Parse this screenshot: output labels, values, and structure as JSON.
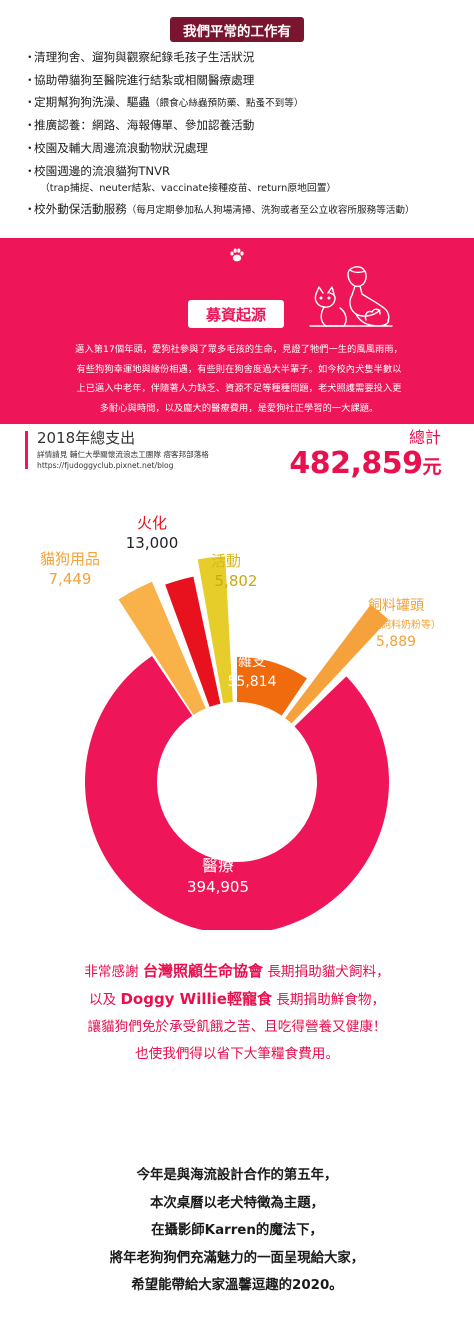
{
  "work": {
    "title": "我們平常的工作有",
    "bullet": "・",
    "items": [
      {
        "text": "清理狗舍、遛狗與觀察紀錄毛孩子生活狀況",
        "note": "",
        "sub": ""
      },
      {
        "text": "協助帶貓狗至醫院進行結紮或相關醫療處理",
        "note": "",
        "sub": ""
      },
      {
        "text": "定期幫狗狗洗澡、驅蟲",
        "note": "（餵食心絲蟲預防藥、點蚤不到等）",
        "sub": ""
      },
      {
        "text": "推廣認養：網路、海報傳單、參加認養活動",
        "note": "",
        "sub": ""
      },
      {
        "text": "校園及輔大周邊流浪動物狀況處理",
        "note": "",
        "sub": ""
      },
      {
        "text": "校園週邊的流浪貓狗TNVR",
        "note": "",
        "sub": "（trap捕捉、neuter結紮、vaccinate接種疫苗、return原地回置）"
      },
      {
        "text": "校外動保活動服務",
        "note": "（每月定期參加私人狗場清掃、洗狗或者至公立收容所服務等活動）",
        "sub": ""
      }
    ]
  },
  "fundraising": {
    "title": "募資起源",
    "lines": [
      "邁入第17個年頭，愛狗社參與了眾多毛孩的生命，見證了牠們一生的風風雨雨，",
      "有些狗狗幸運地與緣份相遇，有些則在狗舍度過大半輩子。如今校內犬隻半數以",
      "上已邁入中老年，伴隨著人力缺乏、資源不足等種種問題，老犬照護需要投入更",
      "多耐心與時間，以及龐大的醫療費用，是愛狗社正學習的一大課題。"
    ]
  },
  "expenses": {
    "title": "2018年總支出",
    "source": "詳情請見 輔仁大學關懷流浪志工團隊 痞客邦部落格",
    "url": "https://fjudoggyclub.pixnet.net/blog",
    "total_label": "總計",
    "total_value": "482,859",
    "total_unit": "元"
  },
  "chart_data": {
    "type": "pie",
    "title": "2018年總支出",
    "total": 482859,
    "slices": [
      {
        "name": "醫療",
        "value": 394905,
        "value_label": "394,905",
        "note": "",
        "color": "#ee1658"
      },
      {
        "name": "貓狗用品",
        "value": 7449,
        "value_label": "7,449",
        "note": "",
        "color": "#f9b24a"
      },
      {
        "name": "火化",
        "value": 13000,
        "value_label": "13,000",
        "note": "",
        "color": "#e8121e"
      },
      {
        "name": "活動",
        "value": 5802,
        "value_label": "5,802",
        "note": "",
        "color": "#e6cd2a"
      },
      {
        "name": "雜支",
        "value": 55814,
        "value_label": "55,814",
        "note": "",
        "color": "#f06b0e"
      },
      {
        "name": "飼料罐頭",
        "value": 5889,
        "value_label": "5,889",
        "note": "（罐頭飼料奶粉等）",
        "color": "#f6a23c"
      }
    ]
  },
  "thanks": {
    "l1_a": "非常感謝 ",
    "l1_b": "台灣照顧生命協會",
    "l1_c": " 長期捐助貓犬飼料，",
    "l2_a": "以及 ",
    "l2_b": "Doggy Willie輕寵食",
    "l2_c": " 長期捐助鮮食物，",
    "l3": "讓貓狗們免於承受飢餓之苦、且吃得營養又健康！",
    "l4": "也使我們得以省下大筆糧食費用。"
  },
  "closing": [
    "今年是與海流設計合作的第五年，",
    "本次桌曆以老犬特徵為主題，",
    "在攝影師Karren的魔法下，",
    "將年老狗狗們充滿魅力的一面呈現給大家，",
    "希望能帶給大家溫馨逗趣的2020。"
  ]
}
